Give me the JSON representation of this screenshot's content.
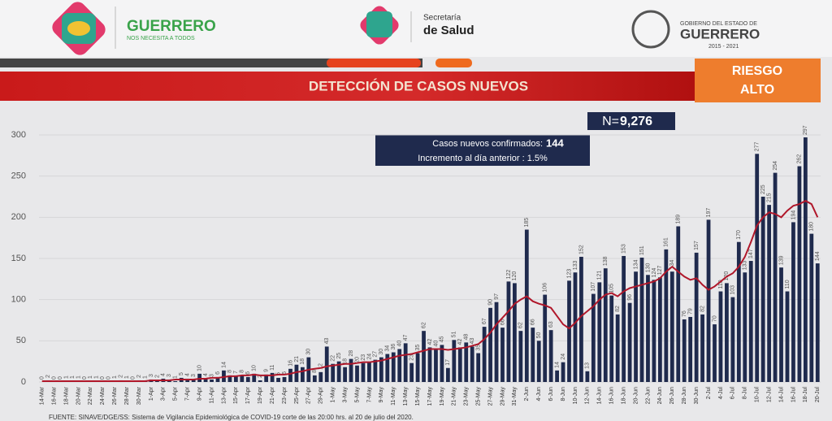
{
  "header": {
    "brand": "GUERRERO",
    "slogan": "NOS NECESITA A TODOS",
    "dept_1": "Secretaría",
    "dept_2": "de Salud",
    "gov_1": "GOBIERNO DEL ESTADO DE",
    "gov_2": "GUERRERO",
    "gov_3": "2015 - 2021"
  },
  "banner": {
    "title": "DETECCIÓN DE CASOS NUEVOS",
    "risk_1": "RIESGO",
    "risk_2": "ALTO"
  },
  "stats": {
    "n_label": "N=",
    "n_value": "9,276",
    "new_label": "Casos nuevos confirmados:",
    "new_value": "144",
    "increment": "Incremento al día anterior : 1.5%"
  },
  "source": "FUENTE: SINAVE/DGE/SS: Sistema de Vigilancia Epidemiológica de COVID-19 corte de las 20:00 hrs. al 20 de julio del 2020.",
  "chart_data": {
    "type": "bar",
    "color": "#1f2a4d",
    "grid": true,
    "ylim": [
      0,
      300
    ],
    "yticks": [
      0,
      50,
      100,
      150,
      200,
      250,
      300
    ],
    "categories": [
      "14-Mar",
      null,
      "16-Mar",
      null,
      "18-Mar",
      null,
      "20-Mar",
      null,
      "22-Mar",
      null,
      "24-Mar",
      null,
      "26-Mar",
      null,
      "28-Mar",
      null,
      "30-Mar",
      null,
      "1-Apr",
      null,
      "3-Apr",
      null,
      "5-Apr",
      null,
      "7-Apr",
      null,
      "9-Apr",
      null,
      "11-Apr",
      null,
      "13-Apr",
      null,
      "15-Apr",
      null,
      "17-Apr",
      null,
      "19-Apr",
      null,
      "21-Apr",
      null,
      "23-Apr",
      null,
      "25-Apr",
      null,
      "27-Apr",
      null,
      "29-Apr",
      null,
      "1-May",
      null,
      "3-May",
      null,
      "5-May",
      null,
      "7-May",
      null,
      "9-May",
      null,
      "11-May",
      null,
      "13-May",
      null,
      "15-May",
      null,
      "17-May",
      null,
      "19-May",
      null,
      "21-May",
      null,
      "23-May",
      null,
      "25-May",
      null,
      "27-May",
      null,
      "29-May",
      null,
      "31-May",
      null,
      "2-Jun",
      null,
      "4-Jun",
      null,
      "6-Jun",
      null,
      "8-Jun",
      null,
      "10-Jun",
      null,
      "12-Jun",
      null,
      "14-Jun",
      null,
      "16-Jun",
      null,
      "18-Jun",
      null,
      "20-Jun",
      null,
      "22-Jun",
      null,
      "24-Jun",
      null,
      "26-Jun",
      null,
      "28-Jun",
      null,
      "30-Jun",
      null,
      "2-Jul",
      null,
      "4-Jul",
      null,
      "6-Jul",
      null,
      "8-Jul",
      null,
      "10-Jul",
      null,
      "12-Jul",
      null,
      "14-Jul",
      null,
      "16-Jul",
      null,
      "18-Jul",
      null,
      "20-Jul"
    ],
    "values": [
      0,
      2,
      0,
      0,
      1,
      1,
      1,
      0,
      1,
      1,
      0,
      0,
      1,
      2,
      1,
      0,
      2,
      1,
      3,
      2,
      4,
      3,
      1,
      5,
      4,
      3,
      10,
      4,
      3,
      6,
      14,
      8,
      7,
      8,
      6,
      10,
      2,
      9,
      11,
      5,
      6,
      16,
      21,
      18,
      30,
      8,
      12,
      43,
      22,
      25,
      18,
      28,
      20,
      23,
      24,
      27,
      30,
      34,
      36,
      40,
      47,
      23,
      35,
      62,
      42,
      40,
      45,
      17,
      51,
      42,
      48,
      43,
      35,
      67,
      90,
      97,
      66,
      122,
      120,
      62,
      185,
      66,
      50,
      106,
      63,
      14,
      24,
      123,
      133,
      152,
      13,
      107,
      121,
      138,
      105,
      82,
      153,
      96,
      134,
      151,
      130,
      124,
      127,
      161,
      134,
      189,
      76,
      79,
      157,
      82,
      197,
      70,
      110,
      120,
      103,
      170,
      133,
      147,
      277,
      225,
      215,
      254,
      139,
      110,
      194,
      262,
      297,
      180,
      144
    ],
    "average": {
      "color": "#b0172a",
      "values": [
        1,
        1,
        1,
        1,
        1,
        1,
        1,
        1,
        1,
        1,
        1,
        1,
        1,
        1,
        1,
        1,
        1,
        1,
        2,
        2,
        2,
        2,
        3,
        3,
        3,
        3,
        4,
        4,
        5,
        5,
        6,
        7,
        7,
        8,
        8,
        9,
        8,
        8,
        8,
        9,
        9,
        10,
        12,
        13,
        15,
        16,
        17,
        19,
        20,
        21,
        22,
        22,
        23,
        24,
        24,
        25,
        26,
        28,
        30,
        32,
        33,
        34,
        36,
        38,
        40,
        40,
        40,
        39,
        40,
        41,
        42,
        44,
        46,
        52,
        60,
        70,
        78,
        86,
        95,
        100,
        104,
        98,
        95,
        93,
        90,
        80,
        70,
        65,
        72,
        80,
        86,
        92,
        100,
        106,
        108,
        104,
        110,
        114,
        116,
        118,
        120,
        122,
        126,
        134,
        140,
        134,
        128,
        124,
        126,
        118,
        112,
        116,
        122,
        128,
        132,
        140,
        152,
        170,
        190,
        200,
        206,
        204,
        200,
        208,
        214,
        216,
        220,
        216,
        200
      ]
    }
  }
}
